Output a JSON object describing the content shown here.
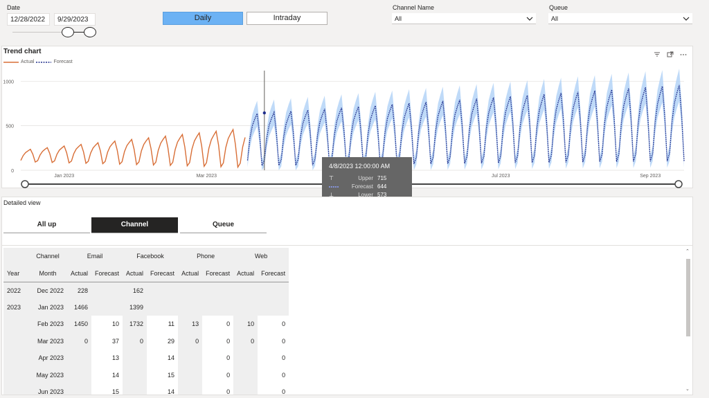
{
  "filters": {
    "date_label": "Date",
    "date_start": "12/28/2022",
    "date_end": "9/29/2023",
    "granularity": [
      {
        "label": "Daily",
        "selected": true
      },
      {
        "label": "Intraday",
        "selected": false
      }
    ],
    "channel_label": "Channel Name",
    "channel_value": "All",
    "queue_label": "Queue",
    "queue_value": "All"
  },
  "trend": {
    "title": "Trend chart",
    "legend": [
      {
        "label": "Actual",
        "color": "#d86e36"
      },
      {
        "label": "Forecast",
        "color": "#1f2e8c"
      }
    ],
    "tooltip": {
      "date": "4/8/2023 12:00:00 AM",
      "rows": [
        {
          "label": "Upper",
          "value": "715"
        },
        {
          "label": "Forecast",
          "value": "644"
        },
        {
          "label": "Lower",
          "value": "573"
        }
      ]
    }
  },
  "chart_data": {
    "type": "line",
    "x_start": "2022-12-28",
    "x_end": "2023-09-29",
    "yticks": [
      0,
      500,
      1000
    ],
    "ylim": [
      0,
      1150
    ],
    "xticks": [
      {
        "label": "Jan 2023",
        "date": "2023-01-15"
      },
      {
        "label": "Mar 2023",
        "date": "2023-03-15"
      },
      {
        "label": "Jul 2023",
        "date": "2023-07-15"
      },
      {
        "label": "Sep 2023",
        "date": "2023-09-15"
      }
    ],
    "series": [
      {
        "name": "Actual",
        "color": "#d86e36",
        "start": "2022-12-28",
        "end": "2023-03-31",
        "low_start": 90,
        "low_end": 10,
        "high_start": 225,
        "high_end": 470
      },
      {
        "name": "Forecast",
        "color": "#1f2e8c",
        "start": "2023-04-01",
        "end": "2023-09-29",
        "low_start": 20,
        "low_end": 60,
        "high_start": 630,
        "high_end": 960,
        "band_color": "#a9cdf5",
        "band_spread": 0.13
      }
    ]
  },
  "detail": {
    "title": "Detailed view",
    "tabs": [
      {
        "label": "All up",
        "active": false
      },
      {
        "label": "Channel",
        "active": true
      },
      {
        "label": "Queue",
        "active": false
      }
    ],
    "matrix": {
      "hdr_channel": "Channel",
      "hdr_year": "Year",
      "hdr_month": "Month",
      "channels": [
        "Email",
        "Facebook",
        "Phone",
        "Web"
      ],
      "sub": [
        "Actual",
        "Forecast"
      ],
      "rows": [
        {
          "year": "2022",
          "month": "Dec 2022",
          "cells": [
            "228",
            "",
            "162",
            "",
            "",
            "",
            "",
            ""
          ]
        },
        {
          "year": "2023",
          "month": "Jan 2023",
          "cells": [
            "1466",
            "",
            "1399",
            "",
            "",
            "",
            "",
            ""
          ]
        },
        {
          "year": "",
          "month": "Feb 2023",
          "cells": [
            "1450",
            "10",
            "1732",
            "11",
            "13",
            "0",
            "10",
            "0"
          ]
        },
        {
          "year": "",
          "month": "Mar 2023",
          "cells": [
            "0",
            "37",
            "0",
            "29",
            "0",
            "0",
            "0",
            "0"
          ]
        },
        {
          "year": "",
          "month": "Apr 2023",
          "cells": [
            "",
            "13",
            "",
            "14",
            "",
            "0",
            "",
            "0"
          ]
        },
        {
          "year": "",
          "month": "May 2023",
          "cells": [
            "",
            "14",
            "",
            "15",
            "",
            "0",
            "",
            "0"
          ]
        },
        {
          "year": "",
          "month": "Jun 2023",
          "cells": [
            "",
            "15",
            "",
            "14",
            "",
            "0",
            "",
            "0"
          ]
        }
      ]
    }
  }
}
